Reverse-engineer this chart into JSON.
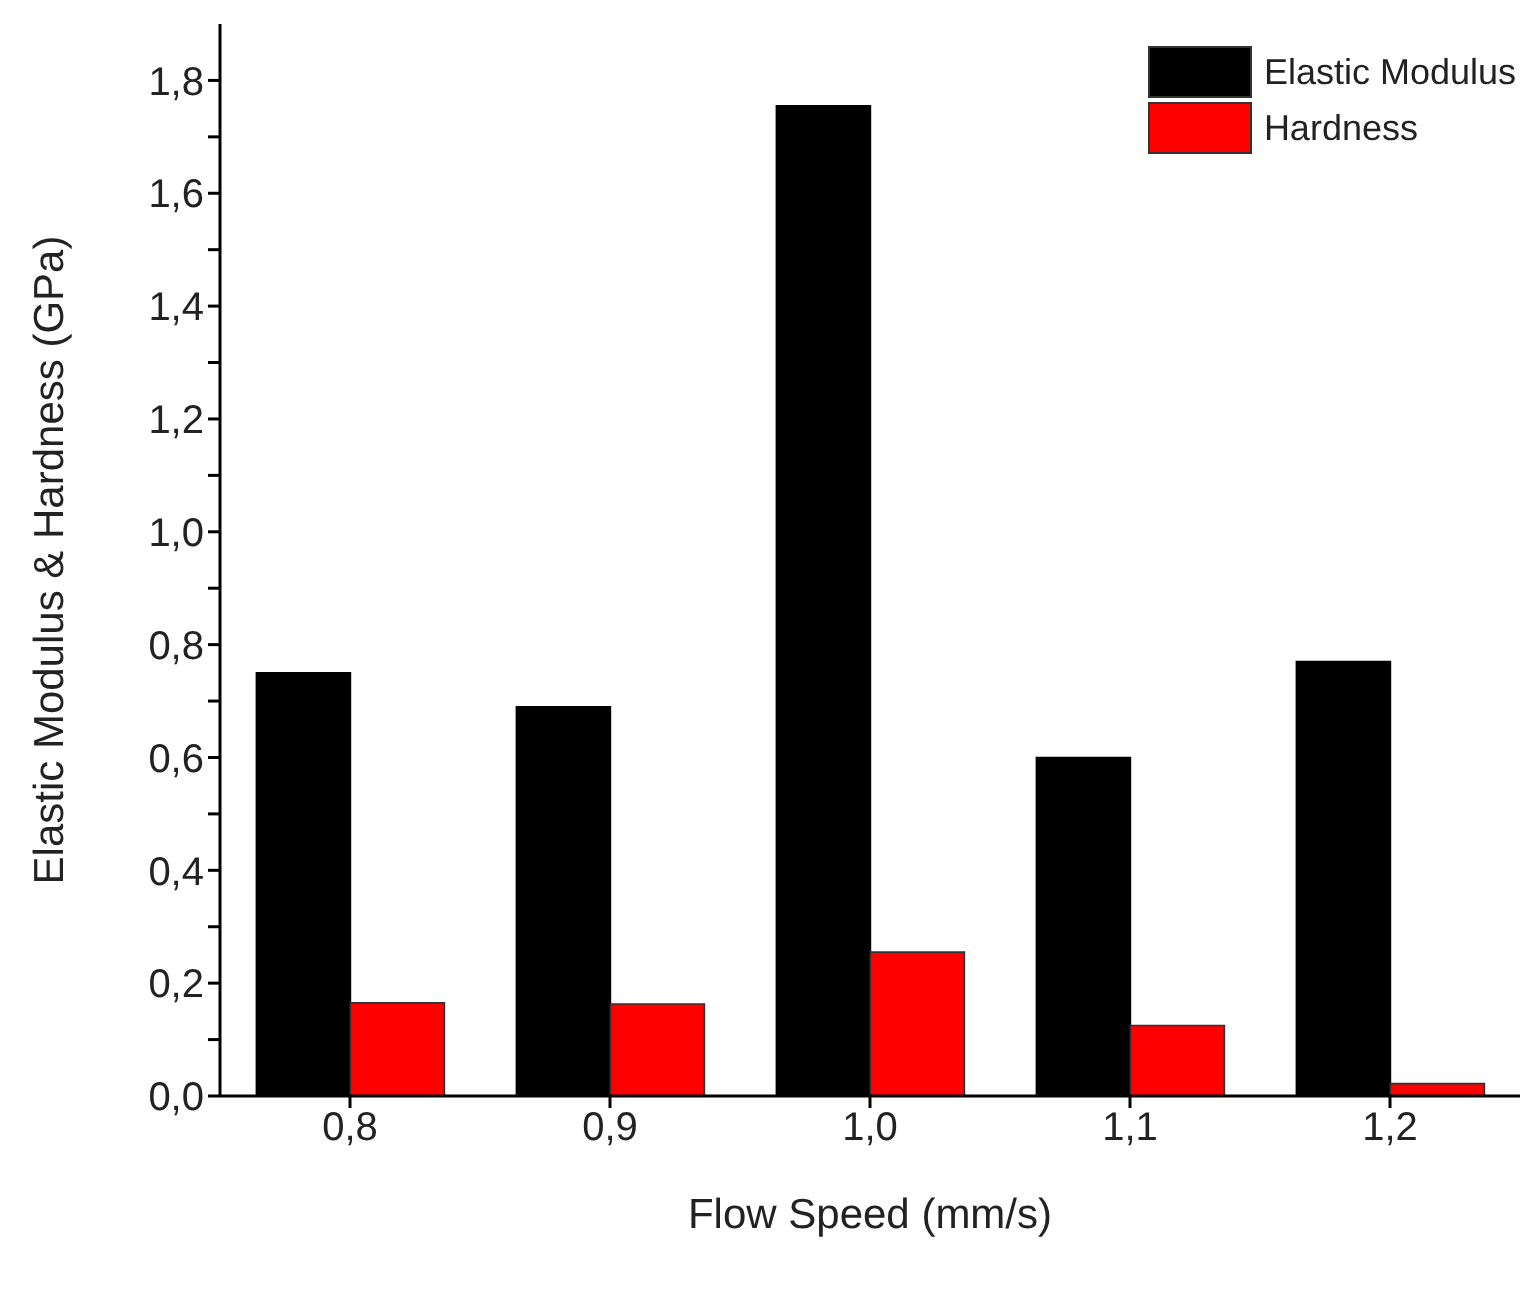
{
  "chart_data": {
    "type": "bar",
    "xlabel": "Flow Speed (mm/s)",
    "ylabel": "Elastic Modulus & Hardness (GPa)",
    "categories": [
      "0,8",
      "0,9",
      "1,0",
      "1,1",
      "1,2"
    ],
    "series": [
      {
        "name": "Elastic Modulus",
        "color": "#000000",
        "values": [
          0.75,
          0.69,
          1.755,
          0.6,
          0.77
        ]
      },
      {
        "name": "Hardness",
        "color": "#ff0000",
        "values": [
          0.165,
          0.163,
          0.255,
          0.125,
          0.022
        ]
      }
    ],
    "ylim": [
      0,
      1.9
    ],
    "yticks": [
      {
        "value": 0,
        "label": "0,0"
      },
      {
        "value": 0.1,
        "label": null
      },
      {
        "value": 0.2,
        "label": "0,2"
      },
      {
        "value": 0.3,
        "label": null
      },
      {
        "value": 0.4,
        "label": "0,4"
      },
      {
        "value": 0.5,
        "label": null
      },
      {
        "value": 0.6,
        "label": "0,6"
      },
      {
        "value": 0.7,
        "label": null
      },
      {
        "value": 0.8,
        "label": "0,8"
      },
      {
        "value": 0.9,
        "label": null
      },
      {
        "value": 1.0,
        "label": "1,0"
      },
      {
        "value": 1.1,
        "label": null
      },
      {
        "value": 1.2,
        "label": "1,2"
      },
      {
        "value": 1.3,
        "label": null
      },
      {
        "value": 1.4,
        "label": "1,4"
      },
      {
        "value": 1.5,
        "label": null
      },
      {
        "value": 1.6,
        "label": "1,6"
      },
      {
        "value": 1.7,
        "label": null
      },
      {
        "value": 1.8,
        "label": "1,8"
      }
    ],
    "grid": false,
    "legend": "top right"
  }
}
